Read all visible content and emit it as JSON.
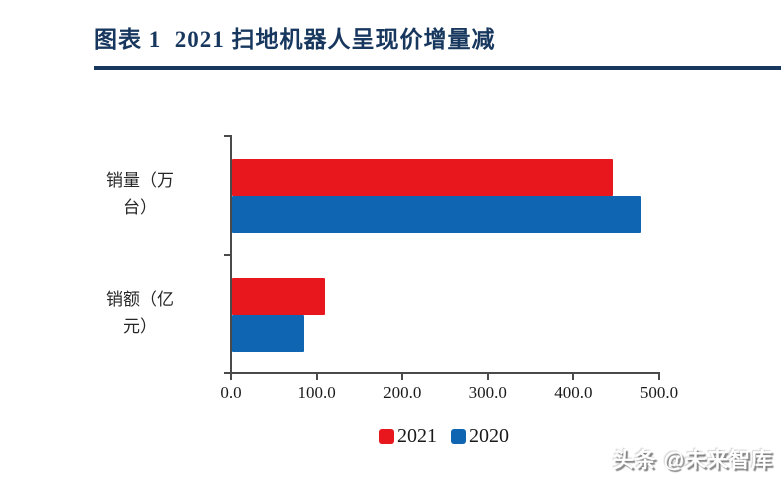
{
  "header": {
    "title": "图表 1  2021 扫地机器人呈现价增量减"
  },
  "colors": {
    "accent_navy": "#17375e",
    "series_2021_red": "#e8161d",
    "series_2020_blue": "#0f65b2",
    "axis_gray": "#4a4a4a"
  },
  "chart_data": {
    "type": "bar",
    "orientation": "horizontal",
    "title": "2021 扫地机器人呈现价增量减",
    "categories": [
      "销量（万台）",
      "销额（亿元）"
    ],
    "category_label_lines": [
      [
        "销量（万",
        "台）"
      ],
      [
        "销额（亿",
        "元）"
      ]
    ],
    "series": [
      {
        "name": "2021",
        "color": "#e8161d",
        "values": [
          445,
          109
        ]
      },
      {
        "name": "2020",
        "color": "#0f65b2",
        "values": [
          478,
          84
        ]
      }
    ],
    "xlabel": "",
    "ylabel": "",
    "xlim": [
      0,
      500
    ],
    "x_ticks": [
      0,
      100,
      200,
      300,
      400,
      500
    ],
    "x_tick_labels": [
      "0.0",
      "100.0",
      "200.0",
      "300.0",
      "400.0",
      "500.0"
    ],
    "grid": false,
    "legend_position": "bottom",
    "legend": [
      "2021",
      "2020"
    ]
  },
  "watermark": {
    "text": "头条 @未来智库"
  }
}
